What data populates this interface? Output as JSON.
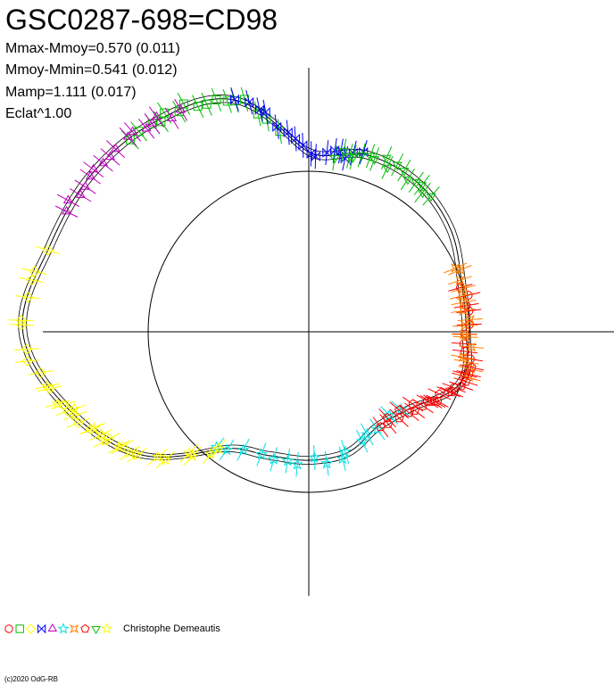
{
  "title": "GSC0287-698=CD98",
  "stats": [
    "Mmax-Mmoy=0.570 (0.011)",
    "Mmoy-Mmin=0.541 (0.012)",
    "Mamp=1.111 (0.017)",
    "Eclat^1.00"
  ],
  "observer": "Christophe Demeautis",
  "copyright": "(c)2020 OdG-RB",
  "chart_data": {
    "type": "scatter",
    "coordinate_system": "polar (phase as angle, relative brightness as radius)",
    "reference_circle_radius": 1.0,
    "axes": {
      "x_range": [
        -1.65,
        1.85
      ],
      "y_range": [
        -1.65,
        1.65
      ],
      "grid": false
    },
    "fit_curve": {
      "phase": [
        0.0,
        0.05,
        0.1,
        0.15,
        0.2,
        0.25,
        0.3,
        0.35,
        0.4,
        0.45,
        0.5,
        0.55,
        0.6,
        0.65,
        0.7,
        0.75,
        0.8,
        0.85,
        0.9,
        0.95
      ],
      "radius": [
        1.12,
        1.16,
        1.15,
        1.09,
        1.0,
        0.98,
        1.0,
        0.8,
        0.73,
        0.79,
        0.8,
        0.81,
        0.9,
        1.3,
        1.57,
        1.78,
        1.7,
        1.67,
        1.62,
        1.52
      ]
    },
    "series": [
      {
        "marker": "circle",
        "color": "#ff0000",
        "phase_range": [
          0.2,
          0.35
        ]
      },
      {
        "marker": "square",
        "color": "#00c000",
        "phase_range": [
          0.88,
          0.98
        ]
      },
      {
        "marker": "diamond",
        "color": "#ffff00",
        "phase_range": [
          0.66,
          0.8
        ]
      },
      {
        "marker": "bowtie",
        "color": "#0000ff",
        "phase_range": [
          0.95,
          1.05
        ]
      },
      {
        "marker": "triangle-up",
        "color": "#c000c0",
        "phase_range": [
          0.82,
          0.92
        ]
      },
      {
        "marker": "star",
        "color": "#00e0e0",
        "phase_range": [
          0.36,
          0.62
        ]
      },
      {
        "marker": "cross",
        "color": "#ff8000",
        "phase_range": [
          0.18,
          0.3
        ]
      },
      {
        "marker": "pentagon",
        "color": "#ff0000",
        "phase_range": [
          0.28,
          0.4
        ]
      },
      {
        "marker": "triangle-down",
        "color": "#00c000",
        "phase_range": [
          0.02,
          0.12
        ]
      },
      {
        "marker": "star",
        "color": "#ffff00",
        "phase_range": [
          0.6,
          0.72
        ]
      }
    ]
  }
}
